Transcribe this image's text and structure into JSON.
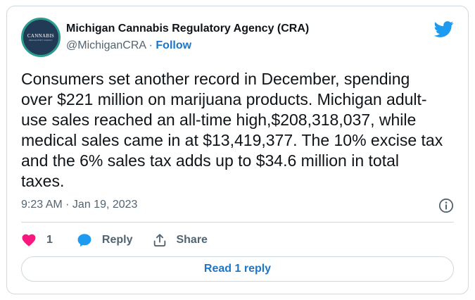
{
  "account": {
    "display_name": "Michigan Cannabis Regulatory Agency (CRA)",
    "handle": "@MichiganCRA",
    "separator": "·",
    "follow_label": "Follow",
    "avatar_text": "CANNABIS",
    "avatar_subtext": "REGULATORY AGENCY"
  },
  "tweet": {
    "text": "Consumers set another record in December, spending\nover $221 million on marijuana products. Michigan adult-\nuse sales reached an all-time high,$208,318,037, while\nmedical sales came in at $13,419,377. The 10% excise tax\nand the 6% sales tax adds up to $34.6 million in total\ntaxes.",
    "timestamp": "9:23 AM · Jan 19, 2023"
  },
  "actions": {
    "like_count": "1",
    "reply_label": "Reply",
    "share_label": "Share",
    "read_replies_label": "Read 1 reply"
  },
  "icons": {
    "logo": "twitter-bird-icon",
    "info": "info-icon",
    "like": "heart-icon",
    "reply": "reply-bubble-icon",
    "share": "share-icon"
  },
  "colors": {
    "twitter_blue": "#1d9bf0",
    "link_blue": "#1d75c8",
    "heart_pink": "#f91880",
    "text_primary": "#0f1419",
    "text_secondary": "#536471",
    "border": "#cfd9de"
  }
}
